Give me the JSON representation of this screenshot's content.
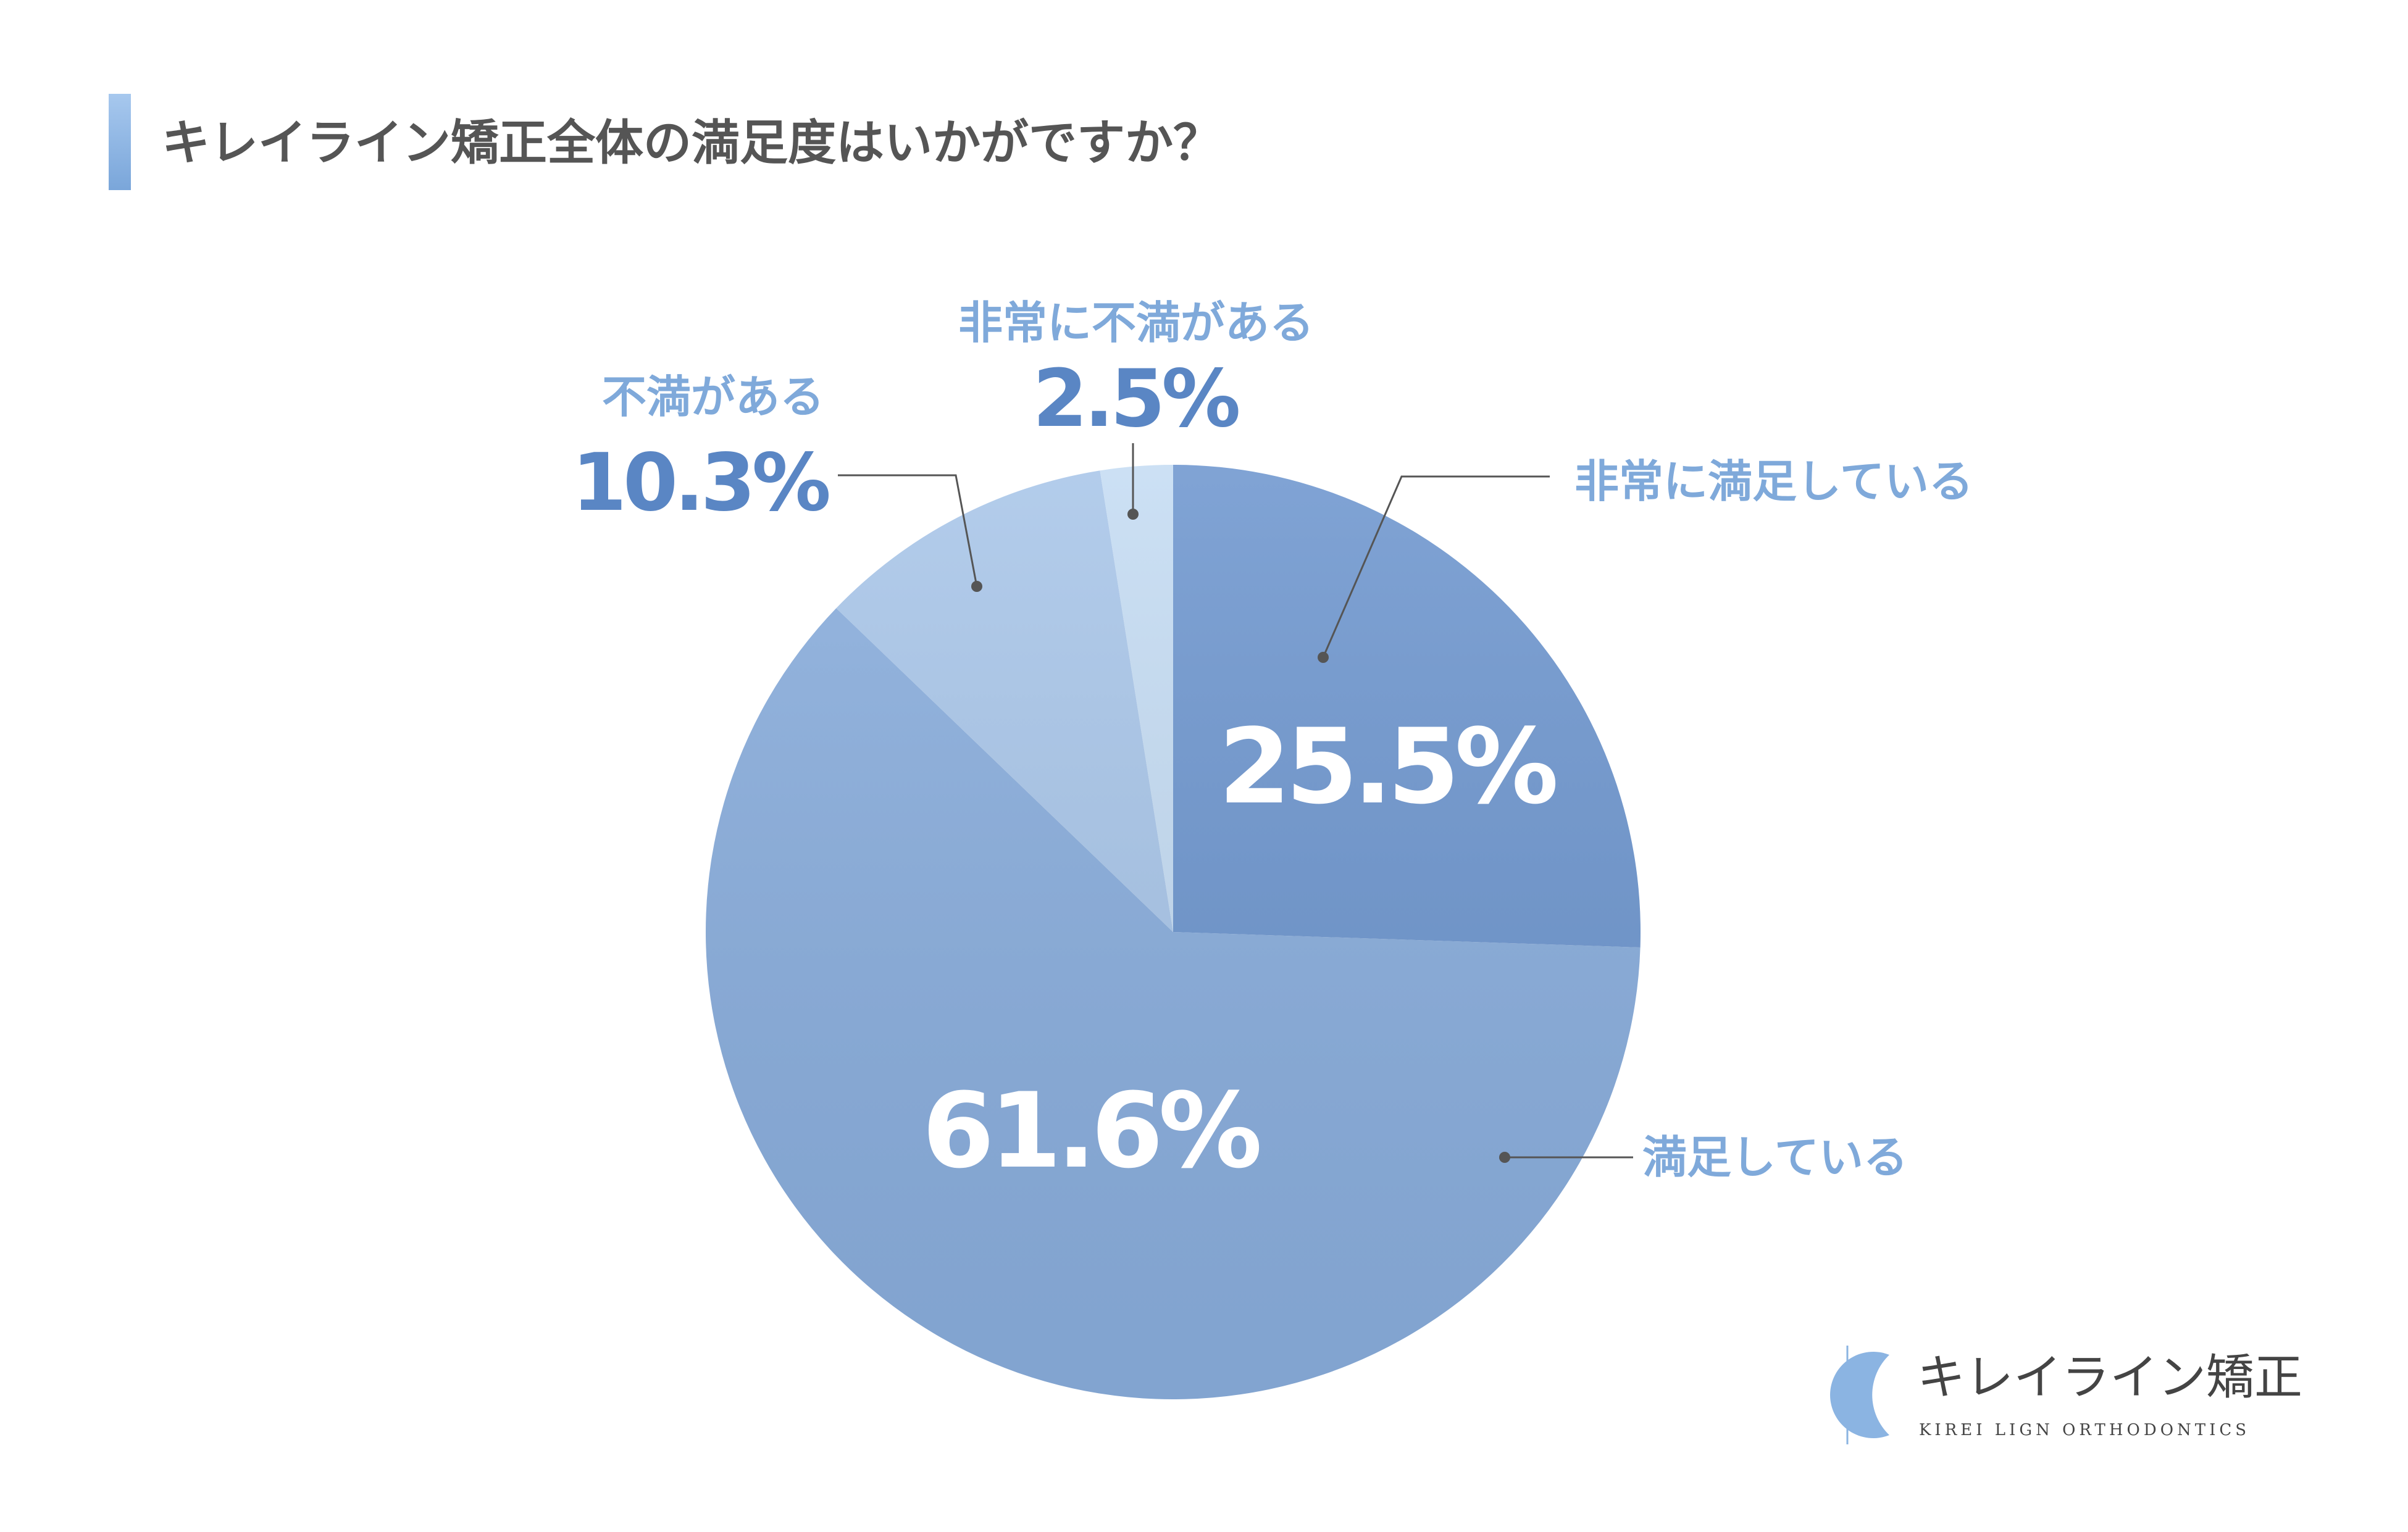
{
  "title": "キレイライン矯正全体の満足度はいかがですか？",
  "chart_data": {
    "type": "pie",
    "title": "キレイライン矯正全体の満足度はいかがですか？",
    "unit": "%",
    "slices": [
      {
        "label": "非常に満足している",
        "value": 25.5,
        "value_text": "25.5%",
        "color": "#6f97cf"
      },
      {
        "label": "満足している",
        "value": 61.6,
        "value_text": "61.6%",
        "color": "#8aaedd"
      },
      {
        "label": "不満がある",
        "value": 10.3,
        "value_text": "10.3%",
        "color": "#a9c6e9"
      },
      {
        "label": "非常に不満がある",
        "value": 2.5,
        "value_text": "2.5%",
        "color": "#c5dcf3"
      }
    ]
  },
  "colors": {
    "accent_bar": "#8bb4e2",
    "label_color": "#7fa9da",
    "outer_value_color": "#5a86c4",
    "inner_value_color": "#ffffff",
    "leader_color": "#555555"
  },
  "logo": {
    "name": "キレイライン矯正",
    "sub": "KIREI LIGN ORTHODONTICS",
    "icon": "crescent-mark-icon"
  }
}
